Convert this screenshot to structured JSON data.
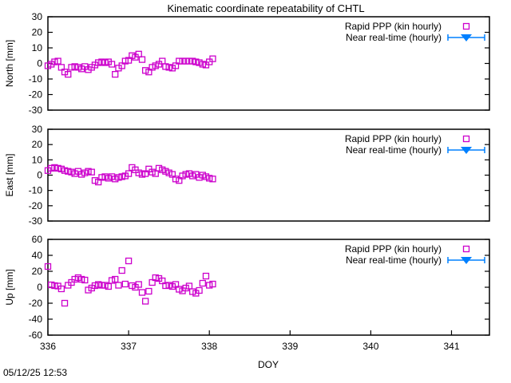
{
  "timestamp": "05/12/25 12:53",
  "chart_data": {
    "type": "scatter",
    "title": "Kinematic coordinate repeatability of CHTL",
    "xlabel": "DOY",
    "xlim": [
      336,
      341.47
    ],
    "xticks": [
      336,
      337,
      338,
      339,
      340,
      341
    ],
    "grid": false,
    "legend_position": "top-right-inside-each-panel",
    "legend": [
      {
        "label": "Rapid PPP (kin hourly)",
        "marker": "open-square",
        "color": "#cc00cc"
      },
      {
        "label": "Near real-time (hourly)",
        "marker": "filled-triangle-down-with-errorbar",
        "color": "#0080ff"
      }
    ],
    "x_doy": [
      336.0,
      336.042,
      336.083,
      336.125,
      336.167,
      336.208,
      336.25,
      336.292,
      336.333,
      336.375,
      336.417,
      336.458,
      336.5,
      336.542,
      336.583,
      336.625,
      336.667,
      336.708,
      336.75,
      336.792,
      336.833,
      336.875,
      336.917,
      336.958,
      337.0,
      337.042,
      337.083,
      337.125,
      337.167,
      337.208,
      337.25,
      337.292,
      337.333,
      337.375,
      337.417,
      337.458,
      337.5,
      337.542,
      337.583,
      337.625,
      337.667,
      337.708,
      337.75,
      337.792,
      337.833,
      337.875,
      337.917,
      337.958,
      338.0,
      338.042
    ],
    "panels": [
      {
        "ylabel": "North [mm]",
        "ylim": [
          -30,
          30
        ],
        "yticks": [
          -30,
          -20,
          -10,
          0,
          10,
          20,
          30
        ],
        "series": [
          {
            "name": "Rapid PPP (kin hourly)",
            "y": [
              -1.5,
              -0.5,
              1,
              1.5,
              -2.5,
              -5.5,
              -7,
              -2.5,
              -2,
              -2.5,
              -3.5,
              -2,
              -4,
              -2.5,
              -1,
              0.5,
              1,
              0.5,
              1,
              -0.5,
              -7,
              -3,
              -1.5,
              1.5,
              2,
              5,
              4,
              6,
              2.5,
              -4.5,
              -5.5,
              -2.5,
              -1.5,
              -0.5,
              1.5,
              -2,
              -2.5,
              -3,
              -1.5,
              1.5,
              1.5,
              1.5,
              1.5,
              1.5,
              1,
              0.5,
              -0.5,
              -1,
              1,
              3
            ]
          },
          {
            "name": "Near real-time (hourly)",
            "y": []
          }
        ]
      },
      {
        "ylabel": "East [mm]",
        "ylim": [
          -30,
          30
        ],
        "yticks": [
          -30,
          -20,
          -10,
          0,
          10,
          20,
          30
        ],
        "series": [
          {
            "name": "Rapid PPP (kin hourly)",
            "y": [
              3,
              4.5,
              5,
              4.5,
              4,
              3,
              2.5,
              2,
              1,
              2.5,
              0.5,
              1.5,
              2.5,
              2,
              -3.5,
              -4.5,
              -1.5,
              -1,
              -2,
              -1,
              -2.5,
              -1.5,
              -1,
              -0.5,
              1,
              5,
              3.5,
              1.5,
              0.5,
              1,
              4,
              2,
              1,
              4.5,
              3.5,
              2.5,
              1.5,
              0.5,
              -2.5,
              -3.5,
              -0.5,
              0.5,
              1,
              -0.5,
              0.5,
              -1.5,
              0,
              -1,
              -2,
              -2.5
            ]
          },
          {
            "name": "Near real-time (hourly)",
            "y": []
          }
        ]
      },
      {
        "ylabel": "Up [mm]",
        "ylim": [
          -60,
          60
        ],
        "yticks": [
          -60,
          -40,
          -20,
          0,
          20,
          40,
          60
        ],
        "series": [
          {
            "name": "Rapid PPP (kin hourly)",
            "y": [
              26,
              3,
              2,
              1.5,
              -2,
              -20,
              2.5,
              6,
              10,
              12,
              10,
              9,
              -3.5,
              -1,
              2,
              3.5,
              2.5,
              2.5,
              1,
              8.5,
              10,
              2.5,
              21,
              4,
              33,
              2,
              0,
              3.5,
              -6.5,
              -17.5,
              -5,
              6,
              12,
              11,
              8,
              2,
              2.5,
              1,
              3.5,
              -2.5,
              -4.5,
              -1,
              1.5,
              -5.5,
              -7.5,
              -4,
              5,
              14,
              2.5,
              4
            ]
          },
          {
            "name": "Near real-time (hourly)",
            "y": []
          }
        ]
      }
    ]
  }
}
